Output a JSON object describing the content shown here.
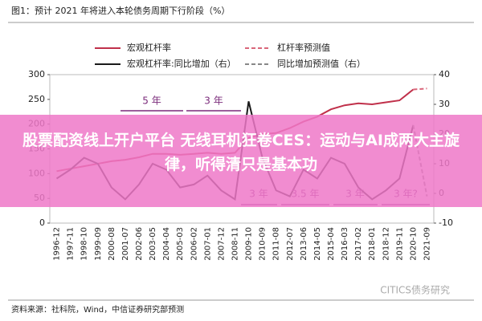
{
  "chart_data": {
    "type": "line",
    "title": "图1：预计 2021 年将进入本轮债务周期下行阶段（%）",
    "categories": [
      "1996-12",
      "1997-11",
      "1998-10",
      "1999-09",
      "2000-08",
      "2001-07",
      "2002-06",
      "2003-05",
      "2004-04",
      "2005-03",
      "2006-02",
      "2007-01",
      "2007-12",
      "2008-11",
      "2009-10",
      "2010-09",
      "2011-08",
      "2012-07",
      "2013-06",
      "2014-05",
      "2015-04",
      "2016-03",
      "2017-02",
      "2018-01",
      "2018-12",
      "2019-11",
      "2020-10",
      "2021-09"
    ],
    "series": [
      {
        "name": "宏观杠杆率",
        "color": "#c0304a",
        "dash": false,
        "values": [
          105,
          110,
          115,
          120,
          125,
          128,
          133,
          140,
          140,
          138,
          140,
          142,
          140,
          142,
          172,
          180,
          182,
          192,
          205,
          215,
          230,
          238,
          242,
          240,
          244,
          248,
          270,
          null
        ]
      },
      {
        "name": "杠杆率预测值",
        "color": "#d9667a",
        "dash": true,
        "values": [
          null,
          null,
          null,
          null,
          null,
          null,
          null,
          null,
          null,
          null,
          null,
          null,
          null,
          null,
          null,
          null,
          null,
          null,
          null,
          null,
          null,
          null,
          null,
          null,
          null,
          null,
          270,
          272
        ]
      },
      {
        "name": "宏观杠杆率:同比增加（右）",
        "color": "#1a1a1a",
        "dash": false,
        "axis": "y2",
        "values": [
          5,
          8,
          12,
          10,
          2,
          -2,
          3,
          10,
          8,
          2,
          3,
          6,
          1,
          -2,
          31,
          12,
          1,
          -1,
          8,
          5,
          12,
          10,
          2,
          -2,
          1,
          5,
          23,
          null
        ]
      },
      {
        "name": "同比增加预测值（右）",
        "color": "#888888",
        "dash": true,
        "axis": "y2",
        "values": [
          null,
          null,
          null,
          null,
          null,
          null,
          null,
          null,
          null,
          null,
          null,
          null,
          null,
          null,
          null,
          null,
          null,
          null,
          null,
          null,
          null,
          null,
          null,
          null,
          null,
          null,
          23,
          -1
        ]
      }
    ],
    "ylim": [
      0,
      300
    ],
    "yticks": [
      0,
      50,
      100,
      150,
      200,
      250,
      300
    ],
    "y2lim": [
      -10,
      40
    ],
    "y2ticks": [
      -10,
      0,
      10,
      20,
      30,
      40
    ],
    "annotations": [
      "5 年",
      "3 年",
      "3 年",
      "3.5 年",
      "3 年",
      "3 年?"
    ],
    "banner": "股票配资线上开户平台 无线耳机狂卷CES：运动与AI成两大主旋律，听得清只是基本功",
    "watermark": "CITICS债务研究",
    "source": "资料来源：社科院，Wind，中信证券研究部预测"
  }
}
